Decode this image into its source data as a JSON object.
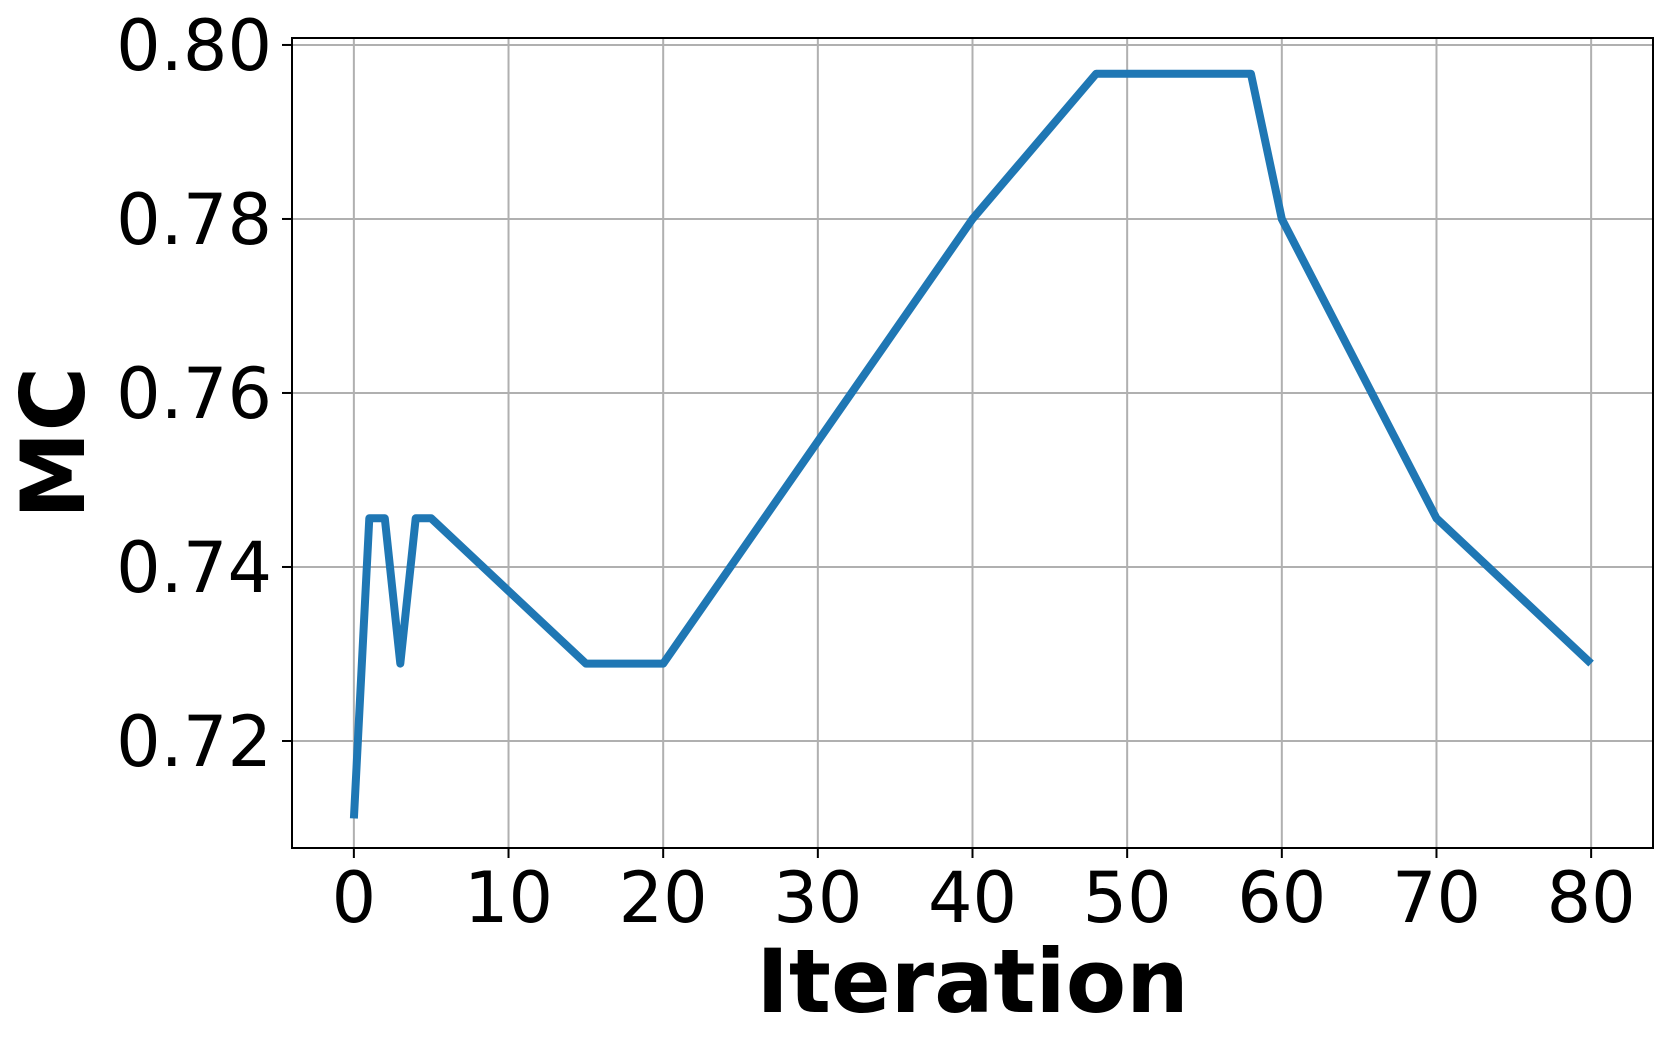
{
  "chart_data": {
    "type": "line",
    "title": "",
    "xlabel": "Iteration",
    "ylabel": "MC",
    "xlim": [
      -4,
      84
    ],
    "ylim": [
      0.7077,
      0.8008
    ],
    "xticks": [
      0,
      10,
      20,
      30,
      40,
      50,
      60,
      70,
      80
    ],
    "xtick_labels": [
      "0",
      "10",
      "20",
      "30",
      "40",
      "50",
      "60",
      "70",
      "80"
    ],
    "yticks": [
      0.72,
      0.74,
      0.76,
      0.78,
      0.8
    ],
    "ytick_labels": [
      "0.72",
      "0.74",
      "0.76",
      "0.78",
      "0.80"
    ],
    "grid": true,
    "legend": false,
    "series": [
      {
        "color": "#1f77b4",
        "x": [
          0,
          1,
          2,
          3,
          4,
          5,
          15,
          20,
          40,
          48,
          58,
          60,
          70,
          80
        ],
        "y": [
          0.7111,
          0.7456,
          0.7456,
          0.7289,
          0.7456,
          0.7456,
          0.7289,
          0.7289,
          0.78,
          0.7967,
          0.7967,
          0.78,
          0.7456,
          0.7289
        ]
      }
    ]
  }
}
